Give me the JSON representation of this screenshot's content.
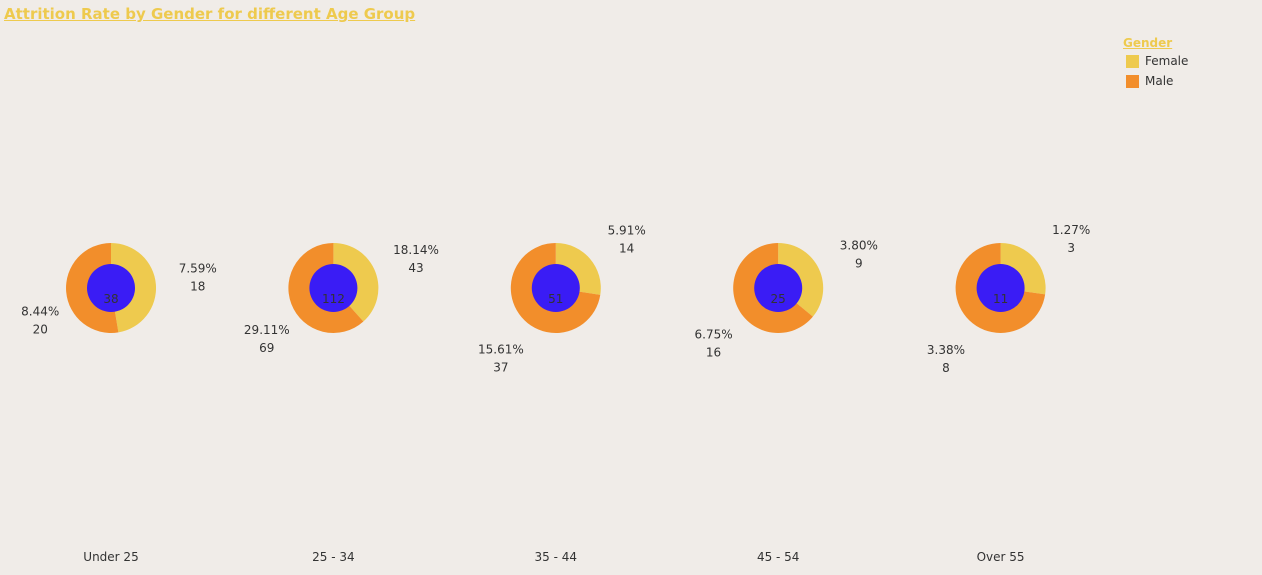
{
  "chart_data": {
    "type": "pie",
    "title": "Attrition Rate by Gender for different Age Group",
    "legend": {
      "title": "Gender",
      "placement": "top-right",
      "entries": [
        {
          "label": "Female",
          "color": "#eeca4e"
        },
        {
          "label": "Male",
          "color": "#f28e2b"
        }
      ]
    },
    "categories": [
      "Under 25",
      "25 - 34",
      "35 - 44",
      "45 - 54",
      "Over 55"
    ],
    "center_color": "#3a1cf5",
    "groups": [
      {
        "category": "Under 25",
        "total": "38",
        "female": {
          "count": 18,
          "pct": "7.59%"
        },
        "male": {
          "count": 20,
          "pct": "8.44%"
        }
      },
      {
        "category": "25 - 34",
        "total": "112",
        "female": {
          "count": 43,
          "pct": "18.14%"
        },
        "male": {
          "count": 69,
          "pct": "29.11%"
        }
      },
      {
        "category": "35 - 44",
        "total": "51",
        "female": {
          "count": 14,
          "pct": "5.91%"
        },
        "male": {
          "count": 37,
          "pct": "15.61%"
        }
      },
      {
        "category": "45 - 54",
        "total": "25",
        "female": {
          "count": 9,
          "pct": "3.80%"
        },
        "male": {
          "count": 16,
          "pct": "6.75%"
        }
      },
      {
        "category": "Over 55",
        "total": "11",
        "female": {
          "count": 3,
          "pct": "1.27%"
        },
        "male": {
          "count": 8,
          "pct": "3.38%"
        }
      }
    ]
  }
}
